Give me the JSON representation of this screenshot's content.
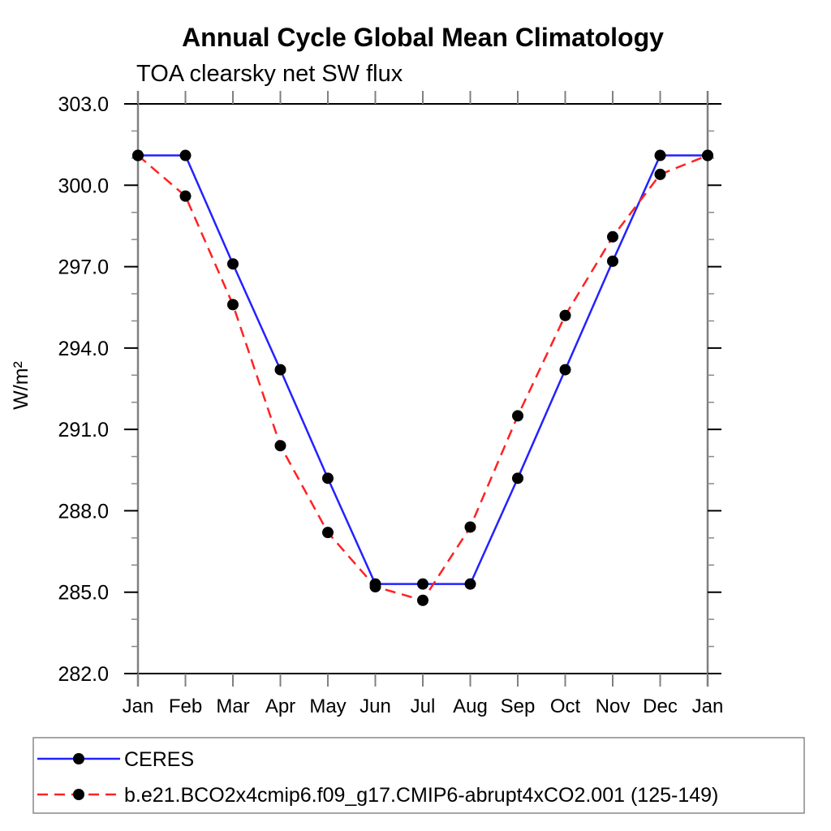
{
  "chart_data": {
    "type": "line",
    "title": "Annual Cycle Global Mean Climatology",
    "subtitle": "TOA clearsky net SW flux",
    "xlabel": "",
    "ylabel": "W/m²",
    "categories": [
      "Jan",
      "Feb",
      "Mar",
      "Apr",
      "May",
      "Jun",
      "Jul",
      "Aug",
      "Sep",
      "Oct",
      "Nov",
      "Dec",
      "Jan"
    ],
    "ylim": [
      282,
      303
    ],
    "ytick_major_step": 3,
    "ytick_minor_step": 1,
    "ytick_label_format": "one-decimal",
    "grid": false,
    "legend_position": "bottom-left-box",
    "axis_colors": {
      "frame": "#000000",
      "vertical_axis": "#808080",
      "major_tick": "#000000",
      "minor_tick": "#8a8a8a",
      "legend_border": "#888888"
    },
    "series": [
      {
        "name": "CERES",
        "color": "#2222ff",
        "line_style": "solid",
        "marker": "filled-circle",
        "marker_color": "#000000",
        "values": [
          301.1,
          301.1,
          297.1,
          293.2,
          289.2,
          285.3,
          285.3,
          285.3,
          289.2,
          293.2,
          297.2,
          301.1,
          301.1
        ]
      },
      {
        "name": "b.e21.BCO2x4cmip6.f09_g17.CMIP6-abrupt4xCO2.001 (125-149)",
        "color": "#ff2222",
        "line_style": "dashed",
        "marker": "filled-circle",
        "marker_color": "#000000",
        "values": [
          301.1,
          299.6,
          295.6,
          290.4,
          287.2,
          285.2,
          284.7,
          287.4,
          291.5,
          295.2,
          298.1,
          300.4,
          301.1
        ]
      }
    ]
  }
}
